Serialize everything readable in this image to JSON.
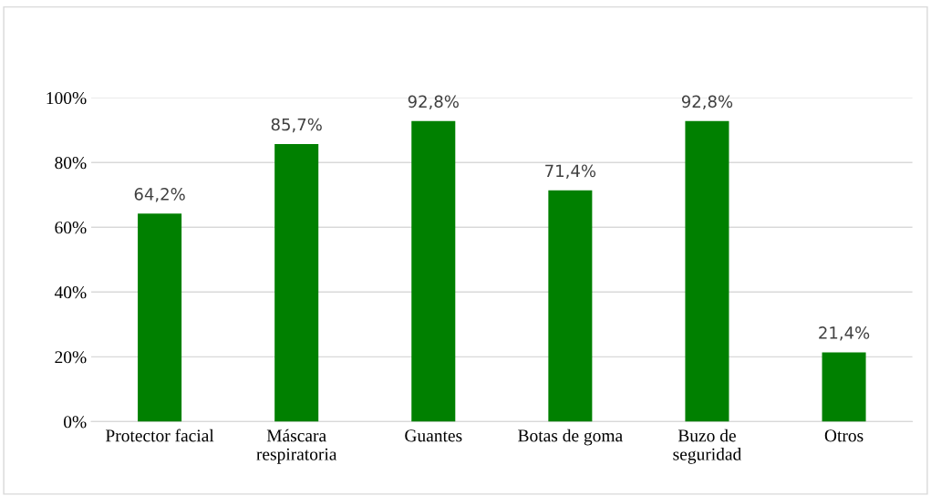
{
  "chart_data": {
    "type": "bar",
    "categories": [
      "Protector facial",
      "Máscara\nrespiratoria",
      "Guantes",
      "Botas de goma",
      "Buzo de\nseguridad",
      "Otros"
    ],
    "values": [
      64.2,
      85.7,
      92.8,
      71.4,
      92.8,
      21.4
    ],
    "value_labels": [
      "64,2%",
      "85,7%",
      "92,8%",
      "71,4%",
      "92,8%",
      "21,4%"
    ],
    "color": "#008000",
    "ylim": [
      0,
      100
    ],
    "yticks": [
      {
        "value": 0,
        "label": "0%"
      },
      {
        "value": 20,
        "label": "20%"
      },
      {
        "value": 40,
        "label": "40%"
      },
      {
        "value": 60,
        "label": "60%"
      },
      {
        "value": 80,
        "label": "80%"
      },
      {
        "value": 100,
        "label": "100%"
      }
    ],
    "grid": "y",
    "legend": false
  }
}
